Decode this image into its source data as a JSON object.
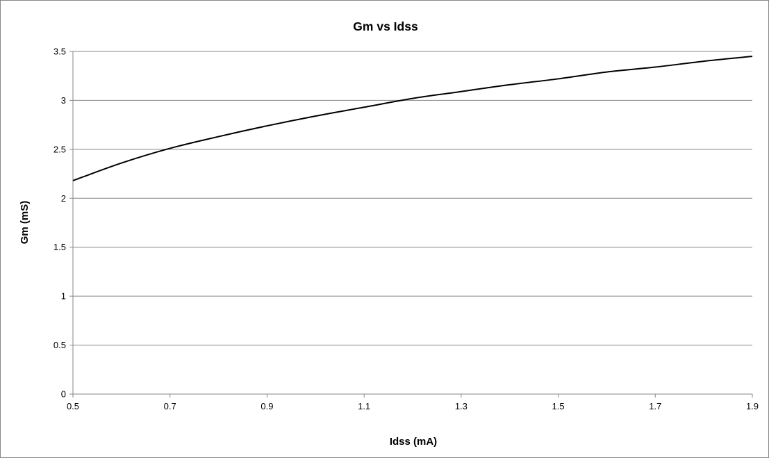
{
  "chart_data": {
    "type": "line",
    "title": "Gm vs Idss",
    "xlabel": "Idss (mA)",
    "ylabel": "Gm (mS)",
    "xlim": [
      0.5,
      1.9
    ],
    "ylim": [
      0,
      3.5
    ],
    "x_ticks": [
      "0.5",
      "0.7",
      "0.9",
      "1.1",
      "1.3",
      "1.5",
      "1.7",
      "1.9"
    ],
    "y_ticks": [
      "0",
      "0.5",
      "1",
      "1.5",
      "2",
      "2.5",
      "3",
      "3.5"
    ],
    "grid": "horizontal",
    "legend": "none",
    "series": [
      {
        "color": "#000000",
        "x": [
          0.5,
          0.6,
          0.7,
          0.8,
          0.9,
          1.0,
          1.1,
          1.2,
          1.3,
          1.4,
          1.5,
          1.6,
          1.7,
          1.8,
          1.9
        ],
        "y": [
          2.18,
          2.36,
          2.51,
          2.63,
          2.74,
          2.84,
          2.93,
          3.02,
          3.09,
          3.16,
          3.22,
          3.29,
          3.34,
          3.4,
          3.45
        ]
      }
    ]
  }
}
